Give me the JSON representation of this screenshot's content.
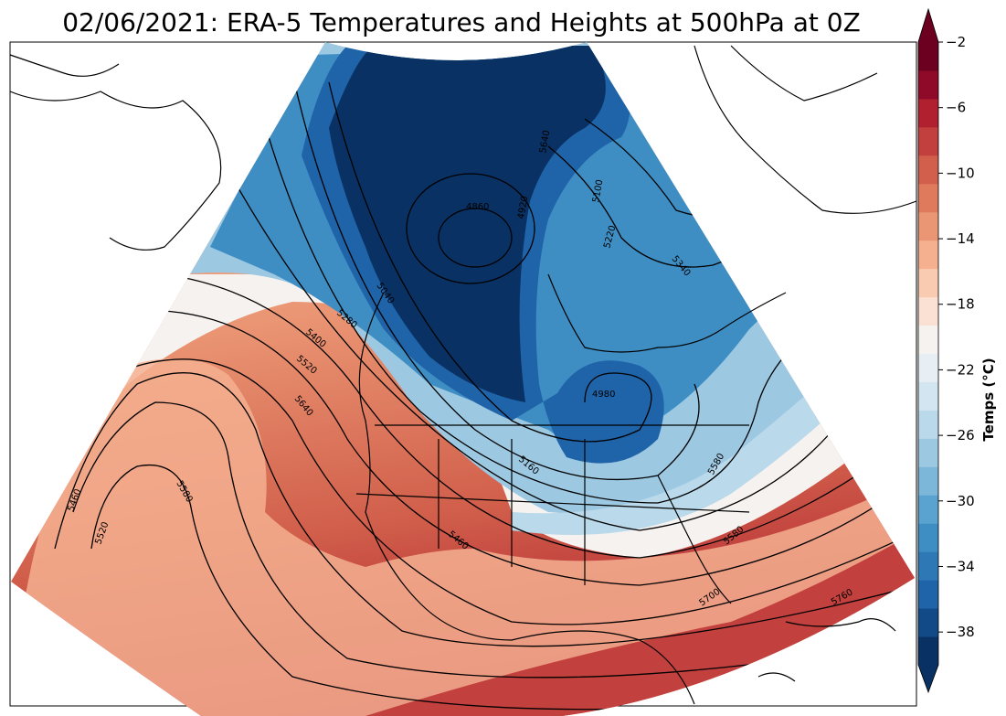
{
  "title": "02/06/2021: ERA-5 Temperatures and Heights at 500hPa at 0Z",
  "colorbar": {
    "label": "Temps (°C)",
    "tick_labels": [
      "−2",
      "−6",
      "−10",
      "−14",
      "−18",
      "−22",
      "−26",
      "−30",
      "−34",
      "−38"
    ],
    "tick_values": [
      -2,
      -6,
      -10,
      -14,
      -18,
      -22,
      -26,
      -30,
      -34,
      -38
    ],
    "range": [
      -40,
      -2
    ],
    "extend": "both",
    "colors": [
      "#093163",
      "#114a87",
      "#1f63a8",
      "#2e78b6",
      "#3e8ec4",
      "#5aa2cf",
      "#7cb7da",
      "#9cc8e2",
      "#bad9ea",
      "#d3e5f0",
      "#e7eff5",
      "#f5f2f0",
      "#fbe1d4",
      "#f9cbb1",
      "#f5b090",
      "#ea9573",
      "#df7a5d",
      "#d15f4b",
      "#c2403d",
      "#b0202f",
      "#8e0a28",
      "#6b0020"
    ]
  },
  "contour_labels": [
    "4860",
    "4920",
    "5040",
    "5100",
    "5160",
    "5280",
    "5400",
    "5520",
    "5640",
    "5460",
    "5520",
    "5580",
    "4980",
    "5220",
    "5340",
    "5460",
    "5580",
    "5700",
    "5760",
    "5640",
    "5580"
  ],
  "colors": {
    "cold_core": "#093163",
    "warm_south": "#c2403d",
    "coastline": "#000000"
  }
}
